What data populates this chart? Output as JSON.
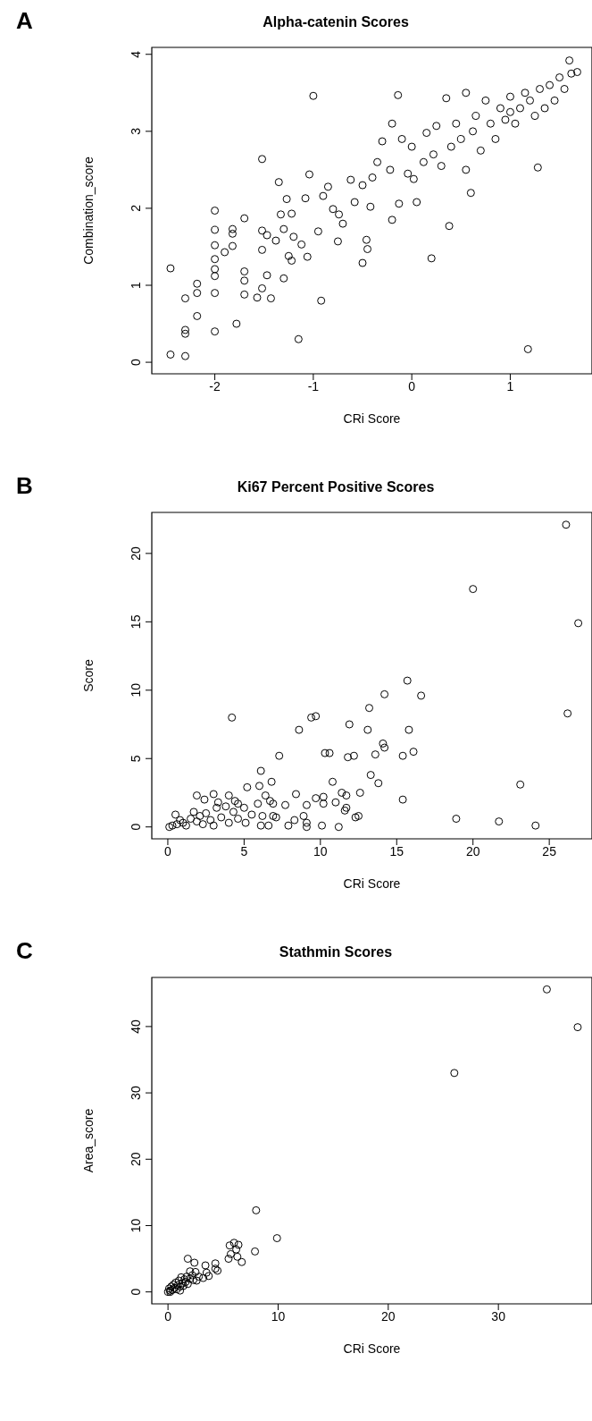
{
  "chart_data": [
    {
      "type": "scatter",
      "title": "Alpha-catenin Scores",
      "xlabel": "CRi Score",
      "ylabel": "Combination_score",
      "annotations": [
        "A"
      ],
      "marker": "circle",
      "grid": false,
      "xlim": [
        -2.64,
        1.83
      ],
      "ylim": [
        -0.15,
        4.09
      ],
      "xticks": [
        -2,
        -1,
        0,
        1
      ],
      "yticks": [
        0,
        1,
        2,
        3,
        4
      ],
      "x": [
        -2.45,
        -2.45,
        -2.3,
        -2.3,
        -2.3,
        -2.3,
        -2.18,
        -2.18,
        -2.18,
        -2,
        -2,
        -2,
        -2,
        -2,
        -2,
        -2,
        -2,
        -1.9,
        -1.82,
        -1.82,
        -1.82,
        -1.78,
        -1.7,
        -1.7,
        -1.7,
        -1.7,
        -1.52,
        -1.52,
        -1.52,
        -1.52,
        -1.57,
        -1.47,
        -1.47,
        -1.43,
        -1.38,
        -1.35,
        -1.33,
        -1.3,
        -1.3,
        -1.27,
        -1.25,
        -1.22,
        -1.22,
        -1.2,
        -1.15,
        -1.12,
        -1.08,
        -1.06,
        -1.0,
        -1.04,
        -0.95,
        -0.92,
        -0.9,
        -0.85,
        -0.8,
        -0.75,
        -0.7,
        -0.74,
        -0.62,
        -0.58,
        -0.5,
        -0.5,
        -0.46,
        -0.45,
        -0.42,
        -0.4,
        -0.35,
        -0.3,
        -0.22,
        -0.2,
        -0.2,
        -0.13,
        -0.1,
        -0.14,
        -0.04,
        0,
        0.02,
        0.05,
        0.12,
        0.15,
        0.2,
        0.22,
        0.25,
        0.3,
        0.35,
        0.38,
        0.4,
        0.45,
        0.5,
        0.55,
        0.55,
        0.6,
        0.62,
        0.65,
        0.7,
        0.75,
        0.8,
        0.85,
        0.9,
        0.95,
        1.0,
        1.0,
        1.05,
        1.1,
        1.15,
        1.18,
        1.2,
        1.25,
        1.28,
        1.3,
        1.35,
        1.4,
        1.45,
        1.5,
        1.55,
        1.6,
        1.62,
        1.68
      ],
      "values": [
        0.1,
        1.22,
        0.83,
        0.42,
        0.37,
        0.08,
        1.02,
        0.9,
        0.6,
        1.97,
        1.72,
        1.52,
        1.34,
        1.21,
        1.12,
        0.9,
        0.4,
        1.43,
        1.73,
        1.67,
        1.51,
        0.5,
        1.87,
        1.18,
        1.06,
        0.88,
        2.64,
        1.71,
        1.46,
        0.96,
        0.84,
        1.65,
        1.13,
        0.83,
        1.58,
        2.34,
        1.92,
        1.73,
        1.09,
        2.12,
        1.38,
        1.93,
        1.32,
        1.63,
        0.3,
        1.53,
        2.13,
        1.37,
        3.46,
        2.44,
        1.7,
        0.8,
        2.16,
        2.28,
        1.99,
        1.57,
        1.8,
        1.92,
        2.37,
        2.08,
        2.3,
        1.29,
        1.59,
        1.47,
        2.02,
        2.4,
        2.6,
        2.87,
        2.5,
        3.1,
        1.85,
        2.06,
        2.9,
        3.47,
        2.45,
        2.8,
        2.38,
        2.08,
        2.6,
        2.98,
        1.35,
        2.7,
        3.07,
        2.55,
        3.43,
        1.77,
        2.8,
        3.1,
        2.9,
        3.5,
        2.5,
        2.2,
        3.0,
        3.2,
        2.75,
        3.4,
        3.1,
        2.9,
        3.3,
        3.15,
        3.25,
        3.45,
        3.1,
        3.3,
        3.5,
        0.17,
        3.4,
        3.2,
        2.53,
        3.55,
        3.3,
        3.6,
        3.4,
        3.7,
        3.55,
        3.92,
        3.75,
        3.77
      ]
    },
    {
      "type": "scatter",
      "title": "Ki67 Percent Positive Scores",
      "xlabel": "CRi Score",
      "ylabel": "Score",
      "annotations": [
        "B"
      ],
      "marker": "circle",
      "grid": false,
      "xlim": [
        -1.05,
        27.8
      ],
      "ylim": [
        -0.87,
        23.0
      ],
      "xticks": [
        0,
        5,
        10,
        15,
        20,
        25
      ],
      "yticks": [
        0,
        5,
        10,
        15,
        20
      ],
      "x": [
        26.1,
        20.0,
        26.9,
        15.7,
        14.2,
        16.6,
        13.2,
        26.2,
        4.2,
        9.4,
        9.7,
        8.6,
        11.9,
        13.1,
        15.8,
        14.1,
        14.2,
        16.1,
        10.3,
        10.6,
        7.3,
        11.8,
        12.2,
        13.6,
        15.4,
        6.1,
        13.3,
        6.8,
        13.8,
        10.8,
        23.1,
        5.2,
        6.0,
        8.4,
        11.4,
        12.6,
        11.7,
        10.2,
        9.7,
        15.4,
        11.0,
        9.1,
        10.2,
        7.7,
        11.7,
        11.6,
        8.9,
        12.3,
        12.5,
        18.9,
        21.7,
        24.1,
        10.1,
        11.2,
        9.1,
        9.1,
        8.3,
        7.9,
        6.9,
        7.1,
        6.2,
        6.4,
        6.7,
        6.9,
        5.9,
        6.1,
        6.6,
        5.0,
        4.0,
        4.4,
        4.6,
        3.0,
        1.9,
        2.4,
        3.3,
        3.8,
        0.1,
        0.3,
        0.5,
        0.6,
        0.8,
        1.0,
        1.2,
        1.5,
        1.7,
        1.9,
        2.1,
        2.3,
        2.5,
        2.8,
        3.0,
        3.2,
        3.5,
        4.0,
        4.3,
        4.6,
        5.1,
        5.5
      ],
      "values": [
        22.1,
        17.4,
        14.9,
        10.7,
        9.7,
        9.6,
        8.7,
        8.3,
        8.0,
        8.0,
        8.1,
        7.1,
        7.5,
        7.1,
        7.1,
        6.1,
        5.8,
        5.5,
        5.4,
        5.4,
        5.2,
        5.1,
        5.2,
        5.3,
        5.2,
        4.1,
        3.8,
        3.3,
        3.2,
        3.3,
        3.1,
        2.9,
        3.0,
        2.4,
        2.5,
        2.5,
        2.3,
        2.2,
        2.1,
        2.0,
        1.8,
        1.6,
        1.7,
        1.6,
        1.4,
        1.2,
        0.8,
        0.7,
        0.8,
        0.6,
        0.4,
        0.1,
        0.1,
        0,
        0,
        0.3,
        0.5,
        0.1,
        0.8,
        0.7,
        0.8,
        2.3,
        1.9,
        1.7,
        1.7,
        0.1,
        0.1,
        1.4,
        2.3,
        1.9,
        1.7,
        2.4,
        2.3,
        2.0,
        1.8,
        1.5,
        0,
        0.1,
        0.9,
        0.2,
        0.5,
        0.3,
        0.1,
        0.6,
        1.1,
        0.4,
        0.8,
        0.2,
        1.0,
        0.5,
        0.1,
        1.4,
        0.7,
        0.3,
        1.1,
        0.6,
        0.3,
        0.9
      ]
    },
    {
      "type": "scatter",
      "title": "Stathmin Scores",
      "xlabel": "CRi Score",
      "ylabel": "Area_score",
      "annotations": [
        "C"
      ],
      "marker": "circle",
      "grid": false,
      "xlim": [
        -1.47,
        38.5
      ],
      "ylim": [
        -1.8,
        47.4
      ],
      "xticks": [
        0,
        10,
        20,
        30
      ],
      "yticks": [
        0,
        10,
        20,
        30,
        40
      ],
      "x": [
        34.4,
        37.2,
        26.0,
        8.0,
        9.9,
        7.9,
        5.6,
        6.0,
        6.4,
        6.2,
        5.7,
        6.3,
        5.5,
        6.7,
        4.3,
        4.5,
        4.3,
        3.4,
        1.8,
        2.4,
        3.5,
        3.7,
        3.2,
        2.0,
        2.5,
        2.6,
        0,
        0.1,
        0.2,
        0.3,
        0.4,
        0.5,
        0.6,
        0.7,
        0.8,
        0.9,
        1.0,
        1.1,
        1.2,
        1.3,
        1.4,
        1.5,
        1.6,
        1.7,
        1.8,
        2.0,
        2.2,
        2.3,
        2.8,
        1.1,
        0.2
      ],
      "values": [
        45.6,
        39.9,
        33.0,
        12.3,
        8.1,
        6.1,
        7.0,
        7.4,
        7.1,
        6.4,
        5.7,
        5.3,
        5.0,
        4.5,
        4.3,
        3.2,
        3.5,
        4.0,
        5.0,
        4.4,
        2.9,
        2.4,
        2.1,
        3.1,
        3.0,
        1.7,
        0,
        0.5,
        0.2,
        0.8,
        0.3,
        1.1,
        0.6,
        1.4,
        0.4,
        1.0,
        1.7,
        0.8,
        2.2,
        1.3,
        0.9,
        1.9,
        1.5,
        2.3,
        1.2,
        2.0,
        2.5,
        1.8,
        2.3,
        0.2,
        0
      ]
    }
  ]
}
